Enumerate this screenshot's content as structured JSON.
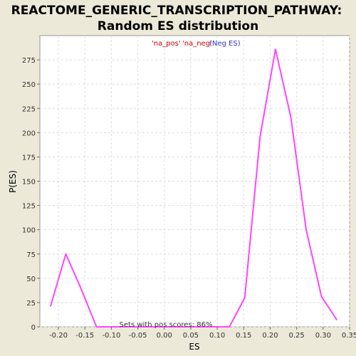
{
  "chart_data": {
    "type": "line",
    "title_line1": "REACTOME_GENERIC_TRANSCRIPTION_PATHWAY:",
    "title_line2": "Random ES distribution",
    "xlabel": "ES",
    "ylabel": "P(ES)",
    "xlim": [
      -0.235,
      0.35
    ],
    "ylim": [
      0,
      300
    ],
    "x_ticks": [
      -0.2,
      -0.15,
      -0.1,
      -0.05,
      0.0,
      0.05,
      0.1,
      0.15,
      0.2,
      0.25,
      0.3,
      0.35
    ],
    "x_tick_labels": [
      "-0.20",
      "-0.15",
      "-0.10",
      "-0.05",
      "0.00",
      "0.05",
      "0.10",
      "0.15",
      "0.20",
      "0.25",
      "0.30",
      "0.35"
    ],
    "y_ticks": [
      0,
      25,
      50,
      75,
      100,
      125,
      150,
      175,
      200,
      225,
      250,
      275
    ],
    "y_tick_labels": [
      "0",
      "25",
      "50",
      "75",
      "100",
      "125",
      "150",
      "175",
      "200",
      "225",
      "250",
      "275"
    ],
    "grid": true,
    "legend": [
      {
        "label": "'na_pos'",
        "color": "#cc0000"
      },
      {
        "label": "'na_neg'",
        "color": "#cc0000"
      },
      {
        "label": "(Neg ES)",
        "color": "#3333cc"
      }
    ],
    "annotation": "Sets with pos scores: 86%",
    "series": [
      {
        "color": "#ff44ff",
        "x": [
          -0.215,
          -0.186,
          -0.157,
          -0.128,
          0.123,
          0.152,
          0.181,
          0.21,
          0.239,
          0.268,
          0.297,
          0.326
        ],
        "y": [
          21,
          75,
          39,
          0,
          0,
          30,
          196,
          286,
          216,
          100,
          31,
          7
        ]
      }
    ]
  }
}
